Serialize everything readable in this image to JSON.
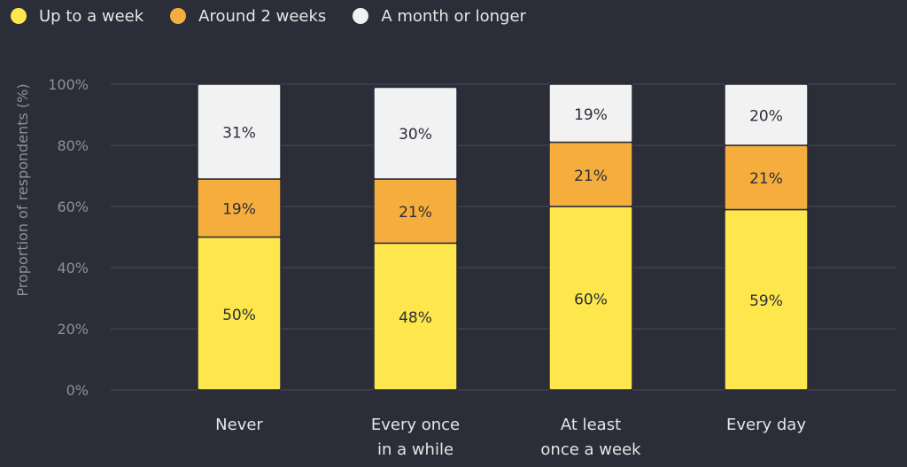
{
  "chart_data": {
    "type": "bar",
    "stacked": true,
    "categories": [
      [
        "Never"
      ],
      [
        "Every once",
        "in a while"
      ],
      [
        "At least",
        "once a week"
      ],
      [
        "Every day"
      ]
    ],
    "series": [
      {
        "name": "Up to a week",
        "color": "#fde74c",
        "values": [
          50,
          48,
          60,
          59
        ]
      },
      {
        "name": "Around 2 weeks",
        "color": "#f5ae3d",
        "values": [
          19,
          21,
          21,
          21
        ]
      },
      {
        "name": "A month or longer",
        "color": "#f2f2f2",
        "values": [
          31,
          30,
          19,
          20
        ]
      }
    ],
    "ylabel": "Proportion of respondents (%)",
    "yticks": [
      "0%",
      "20%",
      "40%",
      "60%",
      "80%",
      "100%"
    ],
    "ylim": [
      0,
      100
    ],
    "grid": true,
    "legend_position": "top-left"
  }
}
